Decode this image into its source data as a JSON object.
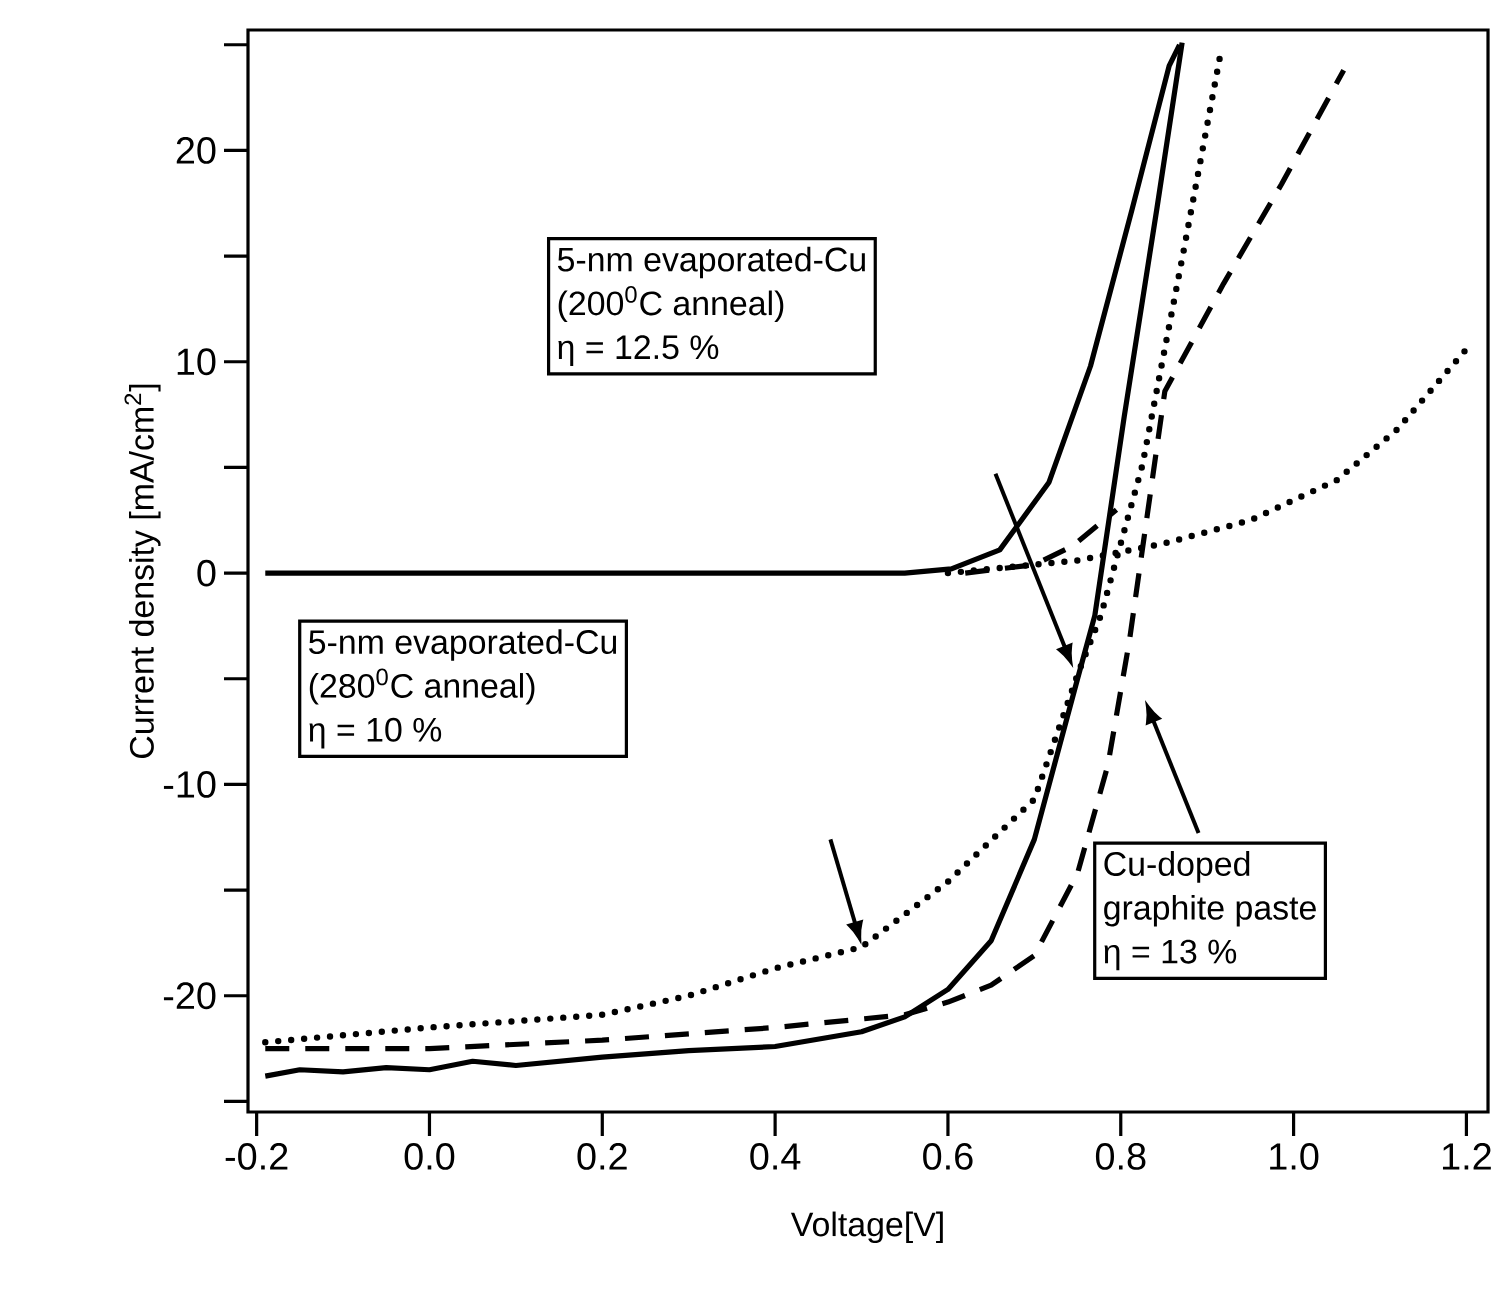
{
  "chart_data": {
    "type": "line",
    "xlabel": "Voltage[V]",
    "ylabel": "Current density [mA/cm$^{2}$]",
    "xlim": [
      -0.21,
      1.225
    ],
    "ylim": [
      -25.5,
      25.7
    ],
    "xticks": [
      -0.2,
      {
        "value": 0,
        "label": "0.0"
      },
      0.2,
      0.4,
      0.6,
      0.8,
      {
        "value": 1,
        "label": "1.0"
      },
      1.2
    ],
    "yticks": [
      {
        "value": -25,
        "label": null
      },
      -20,
      {
        "value": -15,
        "label": null
      },
      -10,
      {
        "value": -5,
        "label": null
      },
      0,
      {
        "value": 5,
        "label": null
      },
      10,
      {
        "value": 15,
        "label": null
      },
      20,
      {
        "value": 25,
        "label": null
      }
    ],
    "grid": false,
    "marker": "none",
    "series": [
      {
        "color": "#000000",
        "line_style": "solid",
        "x": [
          -0.19,
          -0.15,
          -0.1,
          -0.05,
          0.0,
          0.05,
          0.1,
          0.2,
          0.3,
          0.4,
          0.5,
          0.55,
          0.6,
          0.65,
          0.7,
          0.75,
          0.77,
          0.804,
          0.842,
          0.871
        ],
        "values": [
          -23.8,
          -23.5,
          -23.6,
          -23.4,
          -23.5,
          -23.1,
          -23.3,
          -22.9,
          -22.6,
          -22.4,
          -21.7,
          -21.0,
          -19.7,
          -17.4,
          -12.6,
          -5.0,
          -2.0,
          7.4,
          17.3,
          25.1
        ]
      },
      {
        "color": "#000000",
        "line_style": "solid",
        "x": [
          -0.19,
          0.0,
          0.2,
          0.4,
          0.55,
          0.604,
          0.66,
          0.717,
          0.765,
          0.813,
          0.856,
          0.868
        ],
        "values": [
          0,
          0,
          0,
          0,
          0,
          0.2,
          1.1,
          4.3,
          9.8,
          17.2,
          24.0,
          25.0
        ]
      },
      {
        "color": "#000000",
        "line_style": "dotted",
        "x": [
          -0.19,
          0.0,
          0.2,
          0.3,
          0.4,
          0.5,
          0.6,
          0.7,
          0.75,
          0.777,
          0.825,
          0.873,
          0.916
        ],
        "values": [
          -22.2,
          -21.5,
          -20.9,
          -20.0,
          -18.7,
          -17.7,
          -14.6,
          -10.7,
          -4.8,
          -2.0,
          5.1,
          15.3,
          24.7
        ]
      },
      {
        "color": "#000000",
        "line_style": "dotted",
        "x": [
          0.6,
          0.65,
          0.75,
          0.85,
          0.95,
          1.05,
          1.12,
          1.2
        ],
        "values": [
          0,
          0.2,
          0.6,
          1.4,
          2.5,
          4.4,
          6.8,
          10.6
        ]
      },
      {
        "color": "#000000",
        "line_style": "dashed",
        "x": [
          -0.19,
          0.0,
          0.2,
          0.4,
          0.55,
          0.6,
          0.65,
          0.7,
          0.75,
          0.785,
          0.81,
          0.851,
          0.919,
          0.986,
          1.058
        ],
        "values": [
          -22.5,
          -22.5,
          -22.1,
          -21.5,
          -20.9,
          -20.3,
          -19.5,
          -18.1,
          -14.2,
          -9.1,
          -3.2,
          8.6,
          13.7,
          18.4,
          23.8
        ]
      },
      {
        "color": "#000000",
        "line_style": "dashed",
        "x": [
          0.62,
          0.7,
          0.745,
          0.795
        ],
        "values": [
          0,
          0.4,
          1.3,
          3.0
        ]
      }
    ],
    "annotations": [
      "5-nm evaporated-Cu",
      "(200$^{0}$C anneal)",
      "η = 12.5 %",
      "5-nm evaporated-Cu",
      "(280$^{0}$C anneal)",
      "η = 10 %",
      "Cu-doped",
      "graphite paste",
      "η = 13 %"
    ]
  }
}
